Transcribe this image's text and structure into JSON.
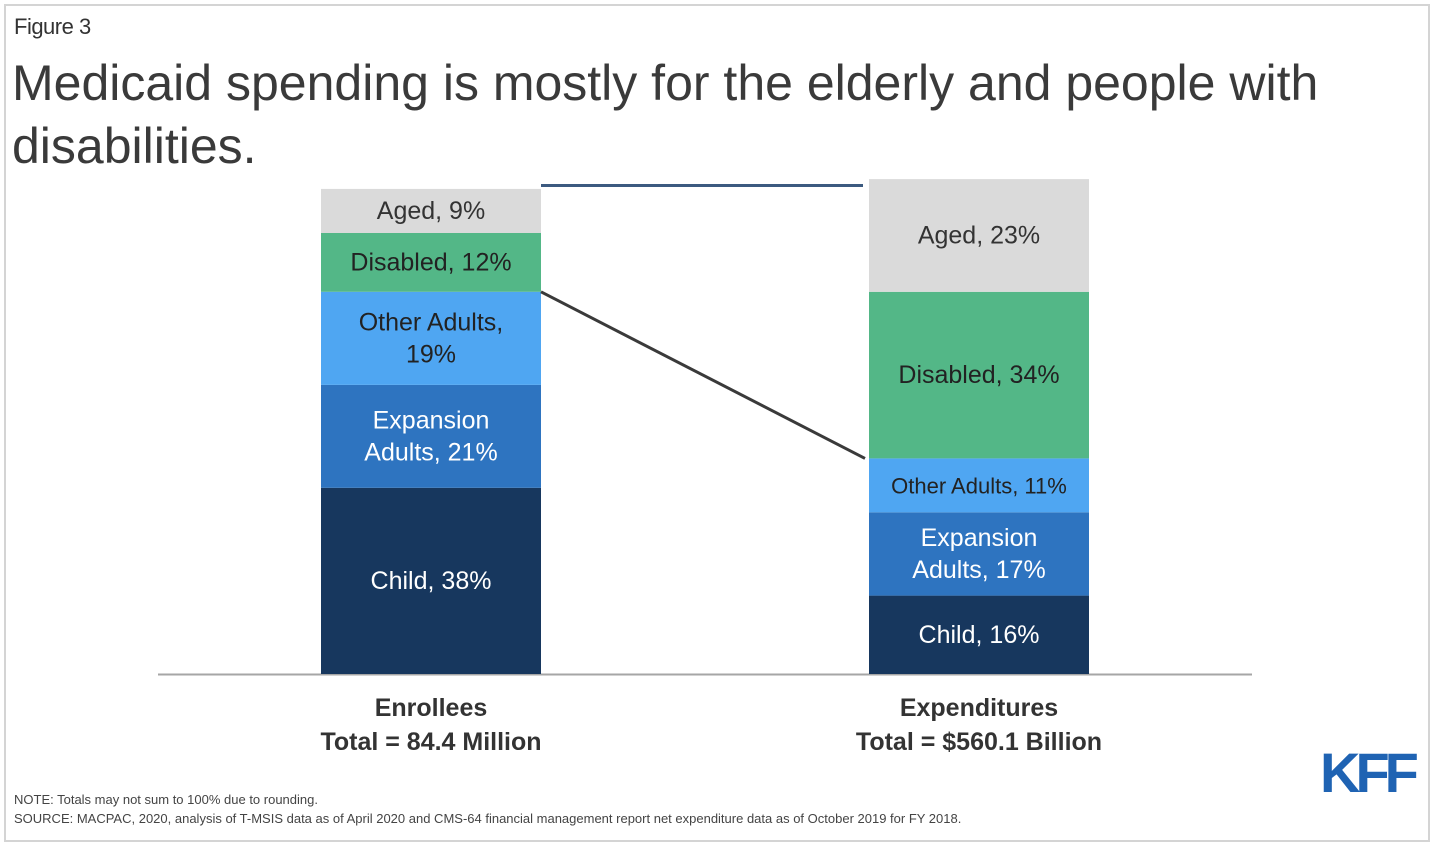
{
  "figure_label": "Figure 3",
  "title": "Medicaid spending is mostly for the elderly and people with disabilities.",
  "note": "NOTE: Totals may not sum to 100% due to rounding.",
  "source": "SOURCE: MACPAC, 2020, analysis of T-MSIS data as of April 2020 and CMS-64 financial management report net expenditure data as of October 2019 for FY 2018.",
  "logo_text": "KFF",
  "colors": {
    "Child": "#17375e",
    "Expansion Adults": "#2e74c0",
    "Other Adults": "#4fa6f2",
    "Disabled": "#53b787",
    "Aged": "#dadada",
    "brand": "#1f63b3"
  },
  "chart_data": {
    "type": "bar",
    "stacked": true,
    "categories": [
      "Enrollees",
      "Expenditures"
    ],
    "category_totals": [
      "Total = 84.4 Million",
      "Total = $560.1 Billion"
    ],
    "ylim": [
      0,
      100
    ],
    "series": [
      {
        "name": "Child",
        "values": [
          38,
          16
        ],
        "labels": [
          "Child, 38%",
          "Child, 16%"
        ],
        "text_color": "#ffffff"
      },
      {
        "name": "Expansion Adults",
        "values": [
          21,
          17
        ],
        "labels": [
          [
            "Expansion",
            "Adults, 21%"
          ],
          [
            "Expansion",
            "Adults, 17%"
          ]
        ],
        "text_color": "#ffffff"
      },
      {
        "name": "Other Adults",
        "values": [
          19,
          11
        ],
        "labels": [
          [
            "Other Adults,",
            "19%"
          ],
          "Other Adults,  11%"
        ],
        "text_color": "#222222"
      },
      {
        "name": "Disabled",
        "values": [
          12,
          34
        ],
        "labels": [
          "Disabled, 12%",
          "Disabled, 34%"
        ],
        "text_color": "#222222"
      },
      {
        "name": "Aged",
        "values": [
          9,
          23
        ],
        "labels": [
          "Aged, 9%",
          "Aged, 23%"
        ],
        "text_color": "#333333"
      }
    ],
    "connector": "Disabled+Aged share (21% of enrollees vs 57% of expenditures)"
  }
}
